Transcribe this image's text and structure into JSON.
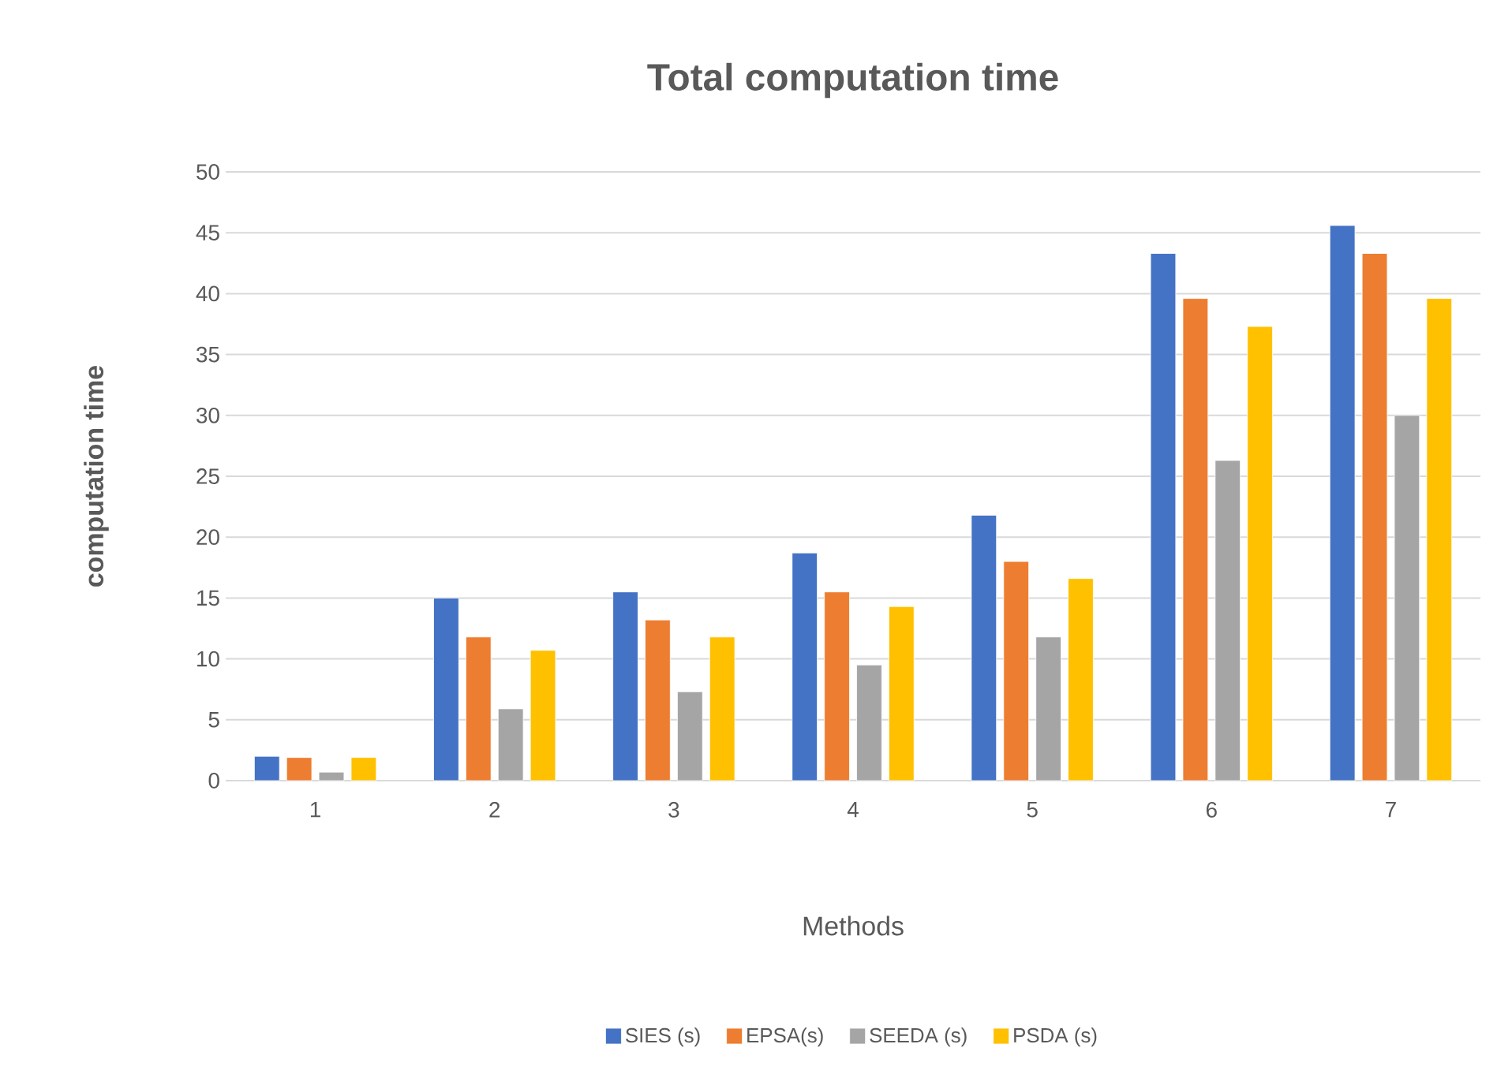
{
  "chart_data": {
    "type": "bar",
    "title": "Total computation time",
    "xlabel": "Methods",
    "ylabel": "computation time",
    "categories": [
      "1",
      "2",
      "3",
      "4",
      "5",
      "6",
      "7"
    ],
    "series": [
      {
        "name": "SIES (s)",
        "color": "#4472c4",
        "values": [
          2.0,
          15.0,
          15.5,
          18.7,
          21.8,
          43.3,
          45.6
        ]
      },
      {
        "name": "EPSA(s)",
        "color": "#ed7d31",
        "values": [
          1.9,
          11.8,
          13.2,
          15.5,
          18.0,
          39.6,
          43.3
        ]
      },
      {
        "name": "SEEDA (s)",
        "color": "#a5a5a5",
        "values": [
          0.7,
          5.9,
          7.3,
          9.5,
          11.8,
          26.3,
          30.0
        ]
      },
      {
        "name": "PSDA (s)",
        "color": "#ffc000",
        "values": [
          1.9,
          10.7,
          11.8,
          14.3,
          16.6,
          37.3,
          39.6
        ]
      }
    ],
    "ylim": [
      0,
      50
    ],
    "yticks": [
      0,
      5,
      10,
      15,
      20,
      25,
      30,
      35,
      40,
      45,
      50
    ],
    "grid": "y",
    "legend": "bottom"
  }
}
